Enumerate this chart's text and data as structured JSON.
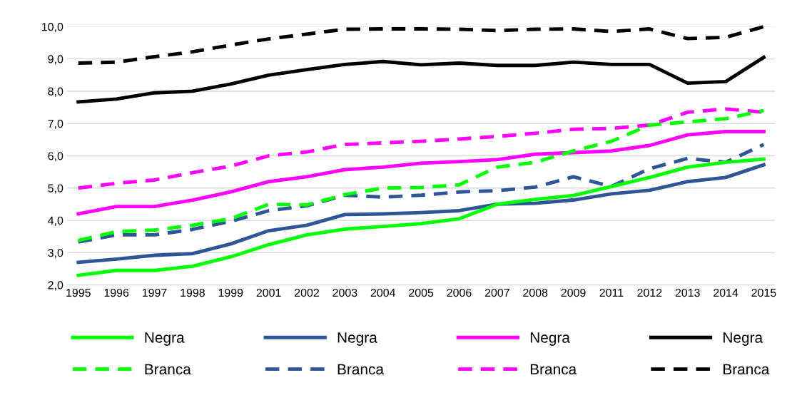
{
  "chart_data": {
    "type": "line",
    "categories": [
      "1995",
      "1996",
      "1997",
      "1998",
      "1999",
      "2001",
      "2002",
      "2003",
      "2004",
      "2005",
      "2006",
      "2007",
      "2008",
      "2009",
      "2011",
      "2012",
      "2013",
      "2014",
      "2015"
    ],
    "ylim": [
      2,
      10
    ],
    "yticks": [
      {
        "value": 2,
        "label": "2,0"
      },
      {
        "value": 3,
        "label": "3,0"
      },
      {
        "value": 4,
        "label": "4,0"
      },
      {
        "value": 5,
        "label": "5,0"
      },
      {
        "value": 6,
        "label": "6,0"
      },
      {
        "value": 7,
        "label": "7,0"
      },
      {
        "value": 8,
        "label": "8,0"
      },
      {
        "value": 9,
        "label": "9,0"
      },
      {
        "value": 10,
        "label": "10,0"
      }
    ],
    "grid": "y",
    "legend": "bottom",
    "marker": "none",
    "series": [
      {
        "name": "Negra",
        "color": "#00ff00",
        "line_style": "solid",
        "values": [
          2.3,
          2.45,
          2.45,
          2.58,
          2.87,
          3.25,
          3.55,
          3.73,
          3.81,
          3.9,
          4.05,
          4.5,
          4.65,
          4.77,
          5.05,
          5.33,
          5.65,
          5.8,
          5.9
        ]
      },
      {
        "name": "Branca",
        "color": "#00ff00",
        "line_style": "dashed",
        "values": [
          3.38,
          3.65,
          3.7,
          3.85,
          4.05,
          4.5,
          4.48,
          4.8,
          5.0,
          5.02,
          5.1,
          5.65,
          5.8,
          6.15,
          6.45,
          6.95,
          7.05,
          7.15,
          7.4
        ]
      },
      {
        "name": "Negra",
        "color": "#2f5597",
        "line_style": "solid",
        "values": [
          2.7,
          2.8,
          2.92,
          2.97,
          3.27,
          3.68,
          3.85,
          4.18,
          4.2,
          4.24,
          4.3,
          4.5,
          4.53,
          4.63,
          4.82,
          4.93,
          5.2,
          5.33,
          5.72
        ]
      },
      {
        "name": "Branca",
        "color": "#2f5597",
        "line_style": "dashed",
        "values": [
          3.33,
          3.55,
          3.55,
          3.72,
          3.97,
          4.3,
          4.45,
          4.78,
          4.72,
          4.78,
          4.88,
          4.92,
          5.03,
          5.35,
          5.05,
          5.6,
          5.92,
          5.8,
          6.35
        ]
      },
      {
        "name": "Negra",
        "color": "#ff00ff",
        "line_style": "solid",
        "values": [
          4.2,
          4.43,
          4.43,
          4.63,
          4.88,
          5.2,
          5.35,
          5.57,
          5.65,
          5.77,
          5.82,
          5.88,
          6.05,
          6.1,
          6.15,
          6.32,
          6.65,
          6.75,
          6.75
        ]
      },
      {
        "name": "Branca",
        "color": "#ff00ff",
        "line_style": "dashed",
        "values": [
          5.0,
          5.15,
          5.25,
          5.48,
          5.68,
          6.0,
          6.12,
          6.35,
          6.4,
          6.45,
          6.52,
          6.6,
          6.7,
          6.82,
          6.85,
          6.95,
          7.35,
          7.45,
          7.35
        ]
      },
      {
        "name": "Negra",
        "color": "#000000",
        "line_style": "solid",
        "values": [
          7.67,
          7.76,
          7.95,
          8.0,
          8.22,
          8.5,
          8.67,
          8.83,
          8.92,
          8.82,
          8.87,
          8.8,
          8.8,
          8.9,
          8.83,
          8.83,
          8.25,
          8.3,
          9.05
        ]
      },
      {
        "name": "Branca",
        "color": "#000000",
        "line_style": "dashed",
        "values": [
          8.87,
          8.9,
          9.07,
          9.22,
          9.43,
          9.62,
          9.77,
          9.92,
          9.93,
          9.93,
          9.92,
          9.88,
          9.92,
          9.93,
          9.85,
          9.93,
          9.63,
          9.67,
          10.0
        ]
      }
    ]
  }
}
